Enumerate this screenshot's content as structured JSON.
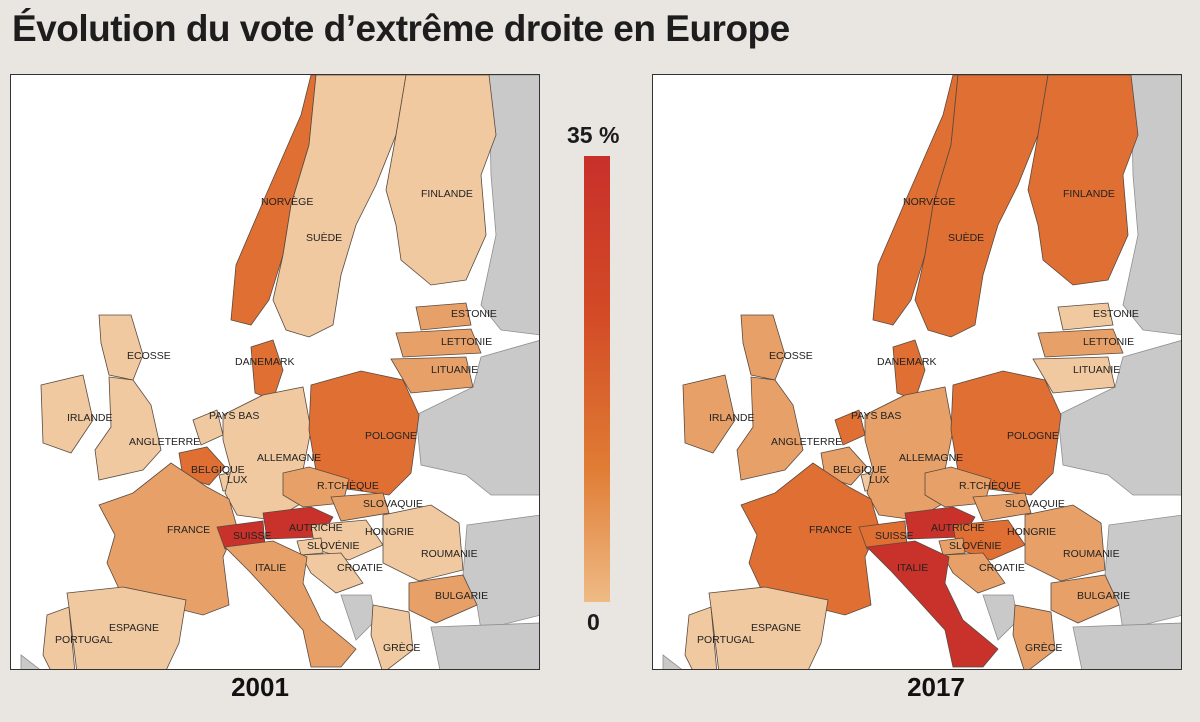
{
  "title": "Évolution du vote d’extrême droite en Europe",
  "legend": {
    "max_label": "35 %",
    "min_label": "0",
    "colors": [
      "#f0c9a0",
      "#e7a068",
      "#df6f32",
      "#c8322a"
    ]
  },
  "maps": [
    {
      "year": "2001",
      "countries": {
        "norvege": {
          "label": "NORVÈGE",
          "level": "high"
        },
        "suede": {
          "label": "SUÈDE",
          "level": "low"
        },
        "finlande": {
          "label": "FINLANDE",
          "level": "low"
        },
        "estonie": {
          "label": "ESTONIE",
          "level": "mid"
        },
        "lettonie": {
          "label": "LETTONIE",
          "level": "mid"
        },
        "lituanie": {
          "label": "LITUANIE",
          "level": "mid"
        },
        "danemark": {
          "label": "DANEMARK",
          "level": "high"
        },
        "ecosse": {
          "label": "ECOSSE",
          "level": "low"
        },
        "irlande": {
          "label": "IRLANDE",
          "level": "low"
        },
        "angleterre": {
          "label": "ANGLETERRE",
          "level": "low"
        },
        "pays_bas": {
          "label": "PAYS BAS",
          "level": "low"
        },
        "belgique": {
          "label": "BELGIQUE",
          "level": "high"
        },
        "lux": {
          "label": "LUX",
          "level": "low"
        },
        "allemagne": {
          "label": "ALLEMAGNE",
          "level": "low"
        },
        "pologne": {
          "label": "POLOGNE",
          "level": "high"
        },
        "rtcheque": {
          "label": "R.TCHÈQUE",
          "level": "mid"
        },
        "slovaquie": {
          "label": "SLOVAQUIE",
          "level": "mid"
        },
        "france": {
          "label": "FRANCE",
          "level": "mid"
        },
        "suisse": {
          "label": "SUISSE",
          "level": "top"
        },
        "autriche": {
          "label": "AUTRICHE",
          "level": "top"
        },
        "hongrie": {
          "label": "HONGRIE",
          "level": "low"
        },
        "roumanie": {
          "label": "ROUMANIE",
          "level": "low"
        },
        "slovenie": {
          "label": "SLOVÉNIE",
          "level": "low"
        },
        "croatie": {
          "label": "CROATIE",
          "level": "low"
        },
        "italie": {
          "label": "ITALIE",
          "level": "mid"
        },
        "bulgarie": {
          "label": "BULGARIE",
          "level": "mid"
        },
        "portugal": {
          "label": "PORTUGAL",
          "level": "low"
        },
        "espagne": {
          "label": "ESPAGNE",
          "level": "low"
        },
        "grece": {
          "label": "GRÈCE",
          "level": "low"
        }
      }
    },
    {
      "year": "2017",
      "countries": {
        "norvege": {
          "label": "NORVÈGE",
          "level": "high"
        },
        "suede": {
          "label": "SUÈDE",
          "level": "high"
        },
        "finlande": {
          "label": "FINLANDE",
          "level": "high"
        },
        "estonie": {
          "label": "ESTONIE",
          "level": "low"
        },
        "lettonie": {
          "label": "LETTONIE",
          "level": "mid"
        },
        "lituanie": {
          "label": "LITUANIE",
          "level": "low"
        },
        "danemark": {
          "label": "DANEMARK",
          "level": "high"
        },
        "ecosse": {
          "label": "ECOSSE",
          "level": "mid"
        },
        "irlande": {
          "label": "IRLANDE",
          "level": "mid"
        },
        "angleterre": {
          "label": "ANGLETERRE",
          "level": "mid"
        },
        "pays_bas": {
          "label": "PAYS BAS",
          "level": "high"
        },
        "belgique": {
          "label": "BELGIQUE",
          "level": "mid"
        },
        "lux": {
          "label": "LUX",
          "level": "low"
        },
        "allemagne": {
          "label": "ALLEMAGNE",
          "level": "mid"
        },
        "pologne": {
          "label": "POLOGNE",
          "level": "high"
        },
        "rtcheque": {
          "label": "R.TCHÈQUE",
          "level": "mid"
        },
        "slovaquie": {
          "label": "SLOVAQUIE",
          "level": "mid"
        },
        "france": {
          "label": "FRANCE",
          "level": "high"
        },
        "suisse": {
          "label": "SUISSE",
          "level": "high"
        },
        "autriche": {
          "label": "AUTRICHE",
          "level": "top"
        },
        "hongrie": {
          "label": "HONGRIE",
          "level": "high"
        },
        "roumanie": {
          "label": "ROUMANIE",
          "level": "mid"
        },
        "slovenie": {
          "label": "SLOVÉNIE",
          "level": "mid"
        },
        "croatie": {
          "label": "CROATIE",
          "level": "mid"
        },
        "italie": {
          "label": "ITALIE",
          "level": "top"
        },
        "bulgarie": {
          "label": "BULGARIE",
          "level": "mid"
        },
        "portugal": {
          "label": "PORTUGAL",
          "level": "low"
        },
        "espagne": {
          "label": "ESPAGNE",
          "level": "low"
        },
        "grece": {
          "label": "GRÈCE",
          "level": "mid"
        }
      }
    }
  ]
}
